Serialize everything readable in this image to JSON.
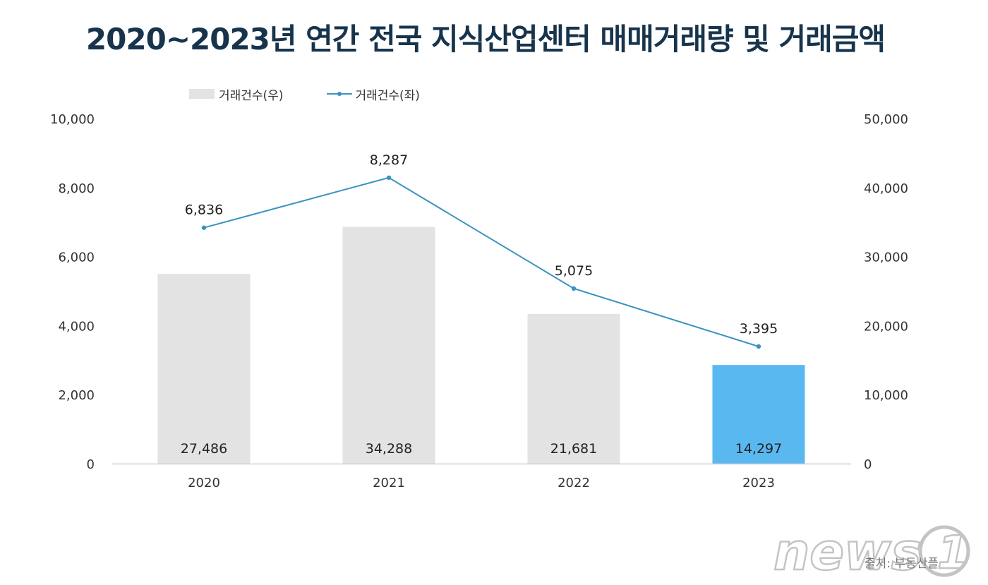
{
  "title": "2020~2023년 연간 전국 지식산업센터 매매거래량 및 거래금액",
  "legend": {
    "bar_label": "거래건수(우)",
    "line_label": "거래건수(좌)"
  },
  "source": "출처: 부동산플",
  "watermark": {
    "text": "news1"
  },
  "colors": {
    "bar": "#e3e3e3",
    "bar_highlight": "#5ab8f0",
    "line": "#3a92c0",
    "title": "#17344c",
    "axis": "#d0d0d0"
  },
  "chart_data": {
    "type": "bar",
    "title": "2020~2023년 연간 전국 지식산업센터 매매거래량 및 거래금액",
    "categories": [
      "2020",
      "2021",
      "2022",
      "2023"
    ],
    "series": [
      {
        "name": "거래건수(우)",
        "type": "bar",
        "axis": "right",
        "values": [
          27486,
          34288,
          21681,
          14297
        ],
        "labels": [
          "27,486",
          "34,288",
          "21,681",
          "14,297"
        ],
        "highlight_index": 3
      },
      {
        "name": "거래건수(좌)",
        "type": "line",
        "axis": "left",
        "values": [
          6836,
          8287,
          5075,
          3395
        ],
        "labels": [
          "6,836",
          "8,287",
          "5,075",
          "3,395"
        ]
      }
    ],
    "y_left": {
      "range": [
        0,
        10000
      ],
      "ticks": [
        0,
        2000,
        4000,
        6000,
        8000,
        10000
      ],
      "tick_labels": [
        "0",
        "2,000",
        "4,000",
        "6,000",
        "8,000",
        "10,000"
      ]
    },
    "y_right": {
      "range": [
        0,
        50000
      ],
      "ticks": [
        0,
        10000,
        20000,
        30000,
        40000,
        50000
      ],
      "tick_labels": [
        "0",
        "10,000",
        "20,000",
        "30,000",
        "40,000",
        "50,000"
      ]
    },
    "grid": false,
    "legend_position": "top-left"
  }
}
